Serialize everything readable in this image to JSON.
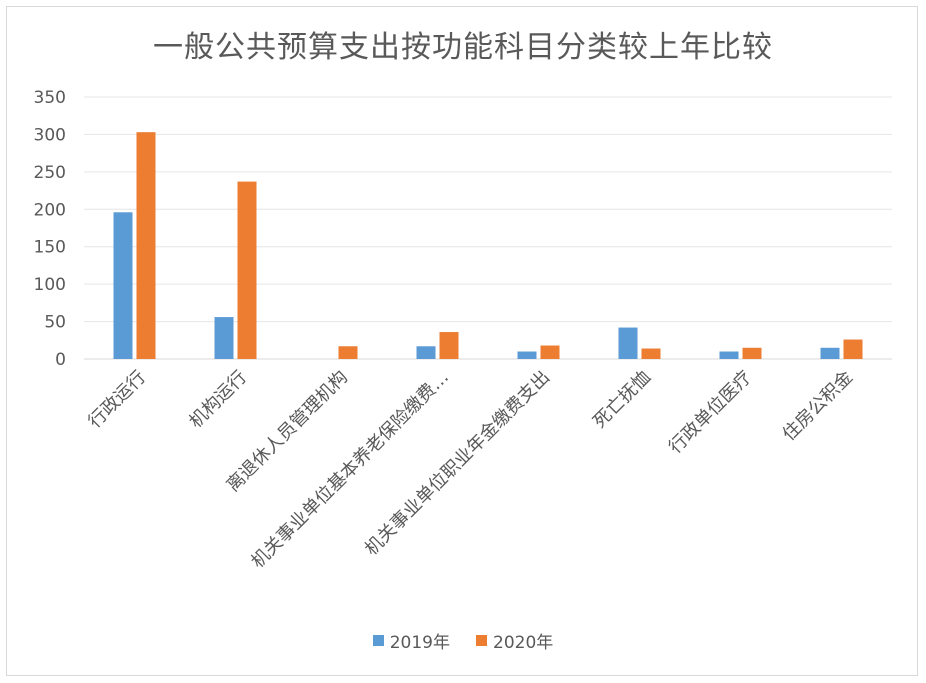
{
  "chart_data": {
    "type": "bar",
    "title": "一般公共预算支出按功能科目分类较上年比较",
    "categories": [
      "行政运行",
      "机构运行",
      "离退休人员管理机构",
      "机关事业单位基本养老保险缴费…",
      "机关事业单位职业年金缴费支出",
      "死亡抚恤",
      "行政单位医疗",
      "住房公积金"
    ],
    "series": [
      {
        "name": "2019年",
        "color": "#5b9bd5",
        "values": [
          196,
          56,
          0,
          17,
          10,
          42,
          10,
          15
        ]
      },
      {
        "name": "2020年",
        "color": "#ed7d31",
        "values": [
          303,
          237,
          17,
          36,
          18,
          14,
          15,
          26
        ]
      }
    ],
    "ylim": [
      0,
      350
    ],
    "yticks": [
      "0",
      "50",
      "100",
      "150",
      "200",
      "250",
      "300",
      "350"
    ],
    "grid": true,
    "legend_position": "bottom"
  }
}
